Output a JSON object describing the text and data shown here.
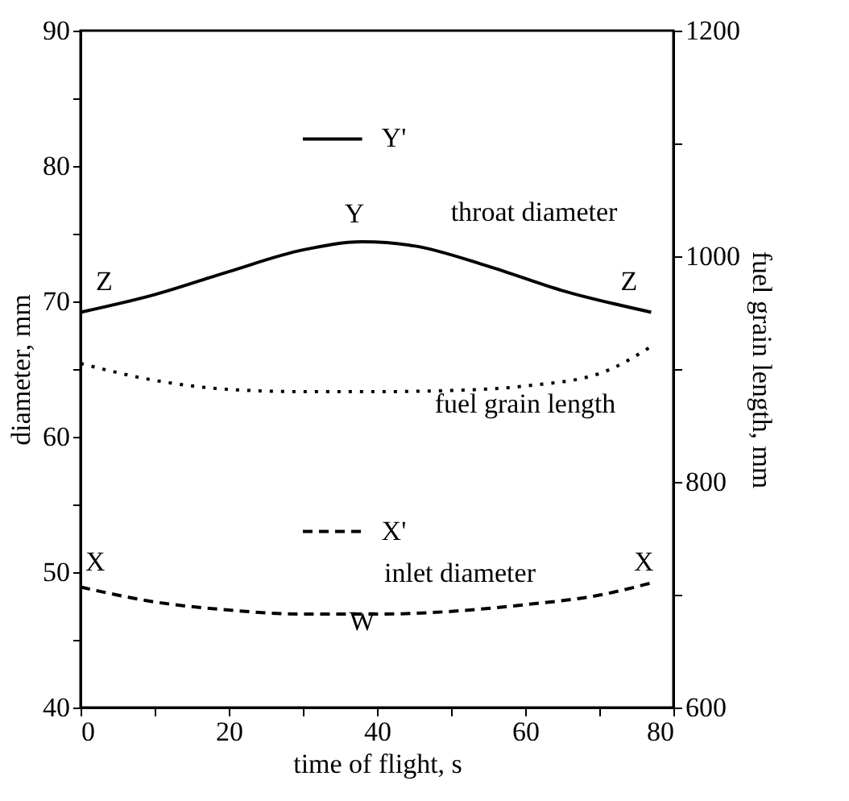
{
  "chart_data": {
    "type": "line",
    "xlabel": "time of flight, s",
    "ylabel": "diameter, mm",
    "y2label": "fuel grain length, mm",
    "xlim": [
      0,
      80
    ],
    "xticks": [
      0,
      {
        "value": 10,
        "label": null
      },
      20,
      {
        "value": 30,
        "label": null
      },
      40,
      {
        "value": 50,
        "label": null
      },
      60,
      {
        "value": 70,
        "label": null
      },
      80
    ],
    "ylim": [
      40,
      90
    ],
    "yticks": [
      40,
      {
        "value": 45,
        "label": null
      },
      50,
      {
        "value": 55,
        "label": null
      },
      60,
      {
        "value": 65,
        "label": null
      },
      70,
      {
        "value": 75,
        "label": null
      },
      80,
      {
        "value": 85,
        "label": null
      },
      90
    ],
    "y2lim": [
      600,
      1200
    ],
    "y2ticks": [
      600,
      {
        "value": 700,
        "label": null
      },
      800,
      {
        "value": 900,
        "label": null
      },
      1000,
      {
        "value": 1100,
        "label": null
      },
      1200
    ],
    "grid": false,
    "legend": "top",
    "series": [
      {
        "name": "Y'",
        "color": "#000000",
        "line_style": "solid",
        "x": [
          0,
          10,
          20,
          30,
          38,
          45,
          55,
          65,
          77
        ],
        "values": [
          69.2,
          70.5,
          72.2,
          73.8,
          74.4,
          74.1,
          72.6,
          70.8,
          69.2
        ]
      },
      {
        "color": "#000000",
        "line_style": "dotted",
        "axis": "y2",
        "x": [
          0,
          10,
          20,
          30,
          40,
          50,
          60,
          70,
          77
        ],
        "values": [
          905,
          890,
          882,
          880,
          880,
          881,
          885,
          896,
          920
        ]
      },
      {
        "name": "X'",
        "color": "#000000",
        "line_style": "dashed",
        "x": [
          0,
          10,
          20,
          30,
          40,
          50,
          60,
          70,
          77
        ],
        "values": [
          48.9,
          47.8,
          47.2,
          46.9,
          46.9,
          47.1,
          47.6,
          48.3,
          49.2
        ]
      }
    ],
    "annotations": [
      "Y",
      "Z",
      "Z",
      "throat diameter",
      "fuel grain length",
      "inlet diameter",
      "X",
      "X",
      "W"
    ]
  }
}
